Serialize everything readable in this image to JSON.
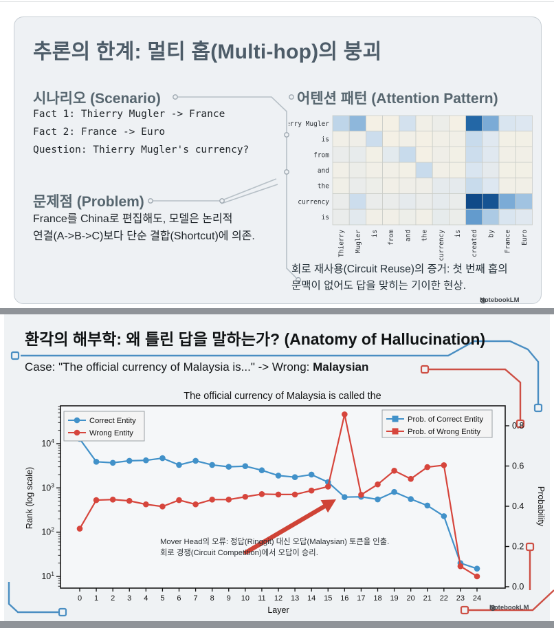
{
  "colors": {
    "accent_blue": "#4191c9",
    "accent_red": "#d6453c",
    "decor_gray": "#b7c0c7",
    "slide_bg": "#eef1f4",
    "heatmap_dark": "#0a4180",
    "heatmap_cream": "#f6f1e4"
  },
  "slide1": {
    "title": "추론의 한계: 멀티 홉(Multi-hop)의 붕괴",
    "scenario": {
      "heading": "시나리오 (Scenario)",
      "lines": [
        "Fact 1: Thierry Mugler -> France",
        "Fact 2: France -> Euro",
        "Question: Thierry Mugler's currency?"
      ]
    },
    "problem": {
      "heading": "문제점 (Problem)",
      "body_lines": [
        "France를 China로 편집해도, 모델은 논리적",
        "연결(A->B->C)보다 단순 결합(Shortcut)에 의존."
      ]
    },
    "attention": {
      "heading": "어텐션 패턴 (Attention Pattern)",
      "caption_lines": [
        "회로 재사용(Circuit Reuse)의 증거: 첫 번째 홉의",
        "문맥이 없어도 답을 맞히는 기이한 현상."
      ]
    },
    "brand": "NotebookLM"
  },
  "slide2": {
    "title": "환각의 해부학: 왜 틀린 답을 말하는가? (Anatomy of Hallucination)",
    "case_prefix": "Case: \"The official currency of Malaysia is...\" -> Wrong: ",
    "case_wrong": "Malaysian",
    "brand": "NotebookLM"
  },
  "chart_data": [
    {
      "type": "heatmap",
      "title": "어텐션 패턴 (Attention Pattern)",
      "row_labels": [
        "Thierry Mugler",
        "is",
        "from",
        "and",
        "the",
        "currency",
        "is"
      ],
      "col_labels": [
        "Thierry",
        "Mugler",
        "is",
        "from",
        "and",
        "the",
        "currency",
        "is",
        "created",
        "by",
        "France",
        "Euro"
      ],
      "values": [
        [
          0.35,
          0.5,
          0.02,
          0.02,
          0.25,
          0.04,
          0.08,
          0.02,
          0.85,
          0.55,
          0.22,
          0.2
        ],
        [
          0.04,
          0.06,
          0.28,
          0.02,
          0.04,
          0.02,
          0.04,
          0.04,
          0.3,
          0.18,
          0.03,
          0.03
        ],
        [
          0.1,
          0.12,
          0.03,
          0.15,
          0.3,
          0.02,
          0.06,
          0.03,
          0.28,
          0.18,
          0.04,
          0.04
        ],
        [
          0.04,
          0.08,
          0.04,
          0.04,
          0.03,
          0.3,
          0.04,
          0.03,
          0.22,
          0.14,
          0.03,
          0.03
        ],
        [
          0.05,
          0.1,
          0.07,
          0.04,
          0.06,
          0.06,
          0.14,
          0.14,
          0.3,
          0.2,
          0.04,
          0.04
        ],
        [
          0.1,
          0.28,
          0.1,
          0.1,
          0.14,
          0.1,
          0.14,
          0.1,
          0.97,
          0.93,
          0.55,
          0.45
        ],
        [
          0.1,
          0.16,
          0.04,
          0.04,
          0.07,
          0.04,
          0.13,
          0.09,
          0.62,
          0.42,
          0.22,
          0.18
        ]
      ],
      "colormap_stops": [
        [
          0.0,
          "#f6f1e4"
        ],
        [
          0.2,
          "#dde7f1"
        ],
        [
          0.4,
          "#b3cfe6"
        ],
        [
          0.6,
          "#699fd0"
        ],
        [
          0.8,
          "#2b74b3"
        ],
        [
          1.0,
          "#0a4180"
        ]
      ]
    },
    {
      "type": "line",
      "title": "The official currency of Malaysia is called the",
      "xlabel": "Layer",
      "x": [
        0,
        1,
        2,
        3,
        4,
        5,
        6,
        7,
        8,
        9,
        10,
        11,
        12,
        13,
        14,
        15,
        16,
        17,
        18,
        19,
        20,
        21,
        22,
        23,
        24
      ],
      "left_axis": {
        "label": "Rank (log scale)",
        "scale": "log",
        "tick_values": [
          10000,
          1000,
          100,
          10
        ],
        "range": [
          6,
          70000
        ]
      },
      "right_axis": {
        "label": "Probability",
        "tick_labels": [
          "0.8",
          "0.6",
          "0.4",
          "0.2",
          "0.0"
        ],
        "tick_values": [
          0.8,
          0.6,
          0.4,
          0.2,
          0.0
        ],
        "range": [
          0.0,
          0.9
        ]
      },
      "legend_left": [
        {
          "label": "Correct Entity",
          "marker": "circle",
          "color": "#4191c9"
        },
        {
          "label": "Wrong Entity",
          "marker": "circle",
          "color": "#d6453c"
        }
      ],
      "legend_right": [
        {
          "label": "Prob. of Correct Entity",
          "marker": "square",
          "color": "#4191c9"
        },
        {
          "label": "Prob. of Wrong Entity",
          "marker": "square",
          "color": "#d6453c"
        }
      ],
      "series": [
        {
          "name": "Correct Entity",
          "color": "#4191c9",
          "marker": "circle",
          "rank": [
            12800,
            3900,
            3700,
            4100,
            4200,
            4700,
            3300,
            4100,
            3300,
            3000,
            3100,
            2500,
            1900,
            1750,
            2000,
            1350,
            620,
            630,
            550,
            810,
            560,
            400,
            230,
            20,
            15
          ],
          "probability_reading": [
            0.74,
            0.62,
            0.62,
            0.63,
            0.63,
            0.64,
            0.61,
            0.63,
            0.61,
            0.6,
            0.6,
            0.58,
            0.55,
            0.54,
            0.56,
            0.52,
            0.44,
            0.45,
            0.43,
            0.47,
            0.44,
            0.4,
            0.35,
            0.11,
            0.09
          ]
        },
        {
          "name": "Wrong Entity",
          "color": "#d6453c",
          "marker": "circle",
          "rank": [
            120,
            530,
            545,
            510,
            425,
            380,
            530,
            425,
            545,
            545,
            630,
            725,
            710,
            710,
            870,
            1070,
            46000,
            700,
            1200,
            2450,
            1600,
            2950,
            3260,
            17,
            10
          ],
          "probability_reading": [
            0.28,
            0.43,
            0.43,
            0.43,
            0.41,
            0.4,
            0.43,
            0.41,
            0.43,
            0.43,
            0.45,
            0.46,
            0.46,
            0.46,
            0.48,
            0.5,
            0.86,
            0.46,
            0.51,
            0.58,
            0.54,
            0.6,
            0.61,
            0.1,
            0.05
          ]
        }
      ],
      "annotation": {
        "lines": [
          "Mover Head의 오류: 정답(Ringgit) 대신 오답(Malaysian) 토큰을 인출.",
          "회로 경쟁(Circuit Competition)에서 오답이 승리."
        ],
        "arrow_target_layer": 16
      }
    }
  ]
}
